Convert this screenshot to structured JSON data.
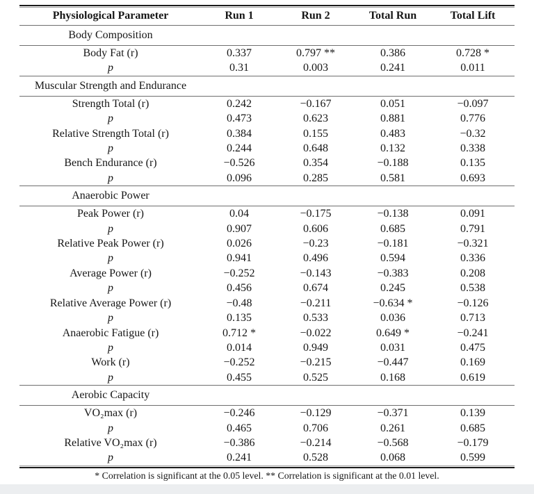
{
  "page": {
    "background": "#ffffff",
    "bottom_strip_color": "#eceef0",
    "rule_dark_color": "#1a1a1a",
    "rule_light_color": "#9a9a9a",
    "thin_rule_color": "#6e6e6e",
    "text_color": "#161616"
  },
  "table": {
    "columns": [
      "Physiological Parameter",
      "Run 1",
      "Run 2",
      "Total Run",
      "Total Lift"
    ],
    "sections": [
      {
        "title": "Body Composition",
        "rows": [
          {
            "label": "Body Fat (r)",
            "italic": false,
            "values": [
              "0.337",
              "0.797 **",
              "0.386",
              "0.728 *"
            ]
          },
          {
            "label": "p",
            "italic": true,
            "values": [
              "0.31",
              "0.003",
              "0.241",
              "0.011"
            ]
          }
        ]
      },
      {
        "title": "Muscular Strength and Endurance",
        "rows": [
          {
            "label": "Strength Total (r)",
            "italic": false,
            "values": [
              "0.242",
              "−0.167",
              "0.051",
              "−0.097"
            ]
          },
          {
            "label": "p",
            "italic": true,
            "values": [
              "0.473",
              "0.623",
              "0.881",
              "0.776"
            ]
          },
          {
            "label": "Relative Strength Total (r)",
            "italic": false,
            "values": [
              "0.384",
              "0.155",
              "0.483",
              "−0.32"
            ]
          },
          {
            "label": "p",
            "italic": true,
            "values": [
              "0.244",
              "0.648",
              "0.132",
              "0.338"
            ]
          },
          {
            "label": "Bench Endurance (r)",
            "italic": false,
            "values": [
              "−0.526",
              "0.354",
              "−0.188",
              "0.135"
            ]
          },
          {
            "label": "p",
            "italic": true,
            "values": [
              "0.096",
              "0.285",
              "0.581",
              "0.693"
            ]
          }
        ]
      },
      {
        "title": "Anaerobic Power",
        "rows": [
          {
            "label": "Peak Power (r)",
            "italic": false,
            "values": [
              "0.04",
              "−0.175",
              "−0.138",
              "0.091"
            ]
          },
          {
            "label": "p",
            "italic": true,
            "values": [
              "0.907",
              "0.606",
              "0.685",
              "0.791"
            ]
          },
          {
            "label": "Relative Peak Power (r)",
            "italic": false,
            "values": [
              "0.026",
              "−0.23",
              "−0.181",
              "−0.321"
            ]
          },
          {
            "label": "p",
            "italic": true,
            "values": [
              "0.941",
              "0.496",
              "0.594",
              "0.336"
            ]
          },
          {
            "label": "Average Power (r)",
            "italic": false,
            "values": [
              "−0.252",
              "−0.143",
              "−0.383",
              "0.208"
            ]
          },
          {
            "label": "p",
            "italic": true,
            "values": [
              "0.456",
              "0.674",
              "0.245",
              "0.538"
            ]
          },
          {
            "label": "Relative Average Power (r)",
            "italic": false,
            "values": [
              "−0.48",
              "−0.211",
              "−0.634 *",
              "−0.126"
            ]
          },
          {
            "label": "p",
            "italic": true,
            "values": [
              "0.135",
              "0.533",
              "0.036",
              "0.713"
            ]
          },
          {
            "label": "Anaerobic Fatigue (r)",
            "italic": false,
            "values": [
              "0.712 *",
              "−0.022",
              "0.649 *",
              "−0.241"
            ]
          },
          {
            "label": "p",
            "italic": true,
            "values": [
              "0.014",
              "0.949",
              "0.031",
              "0.475"
            ]
          },
          {
            "label": "Work (r)",
            "italic": false,
            "values": [
              "−0.252",
              "−0.215",
              "−0.447",
              "0.169"
            ]
          },
          {
            "label": "p",
            "italic": true,
            "values": [
              "0.455",
              "0.525",
              "0.168",
              "0.619"
            ]
          }
        ]
      },
      {
        "title": "Aerobic Capacity",
        "rows": [
          {
            "label": "VO₂max (r)",
            "italic": false,
            "values": [
              "−0.246",
              "−0.129",
              "−0.371",
              "0.139"
            ]
          },
          {
            "label": "p",
            "italic": true,
            "values": [
              "0.465",
              "0.706",
              "0.261",
              "0.685"
            ]
          },
          {
            "label": "Relative VO₂max (r)",
            "italic": false,
            "values": [
              "−0.386",
              "−0.214",
              "−0.568",
              "−0.179"
            ]
          },
          {
            "label": "p",
            "italic": true,
            "values": [
              "0.241",
              "0.528",
              "0.068",
              "0.599"
            ]
          }
        ]
      }
    ],
    "footnote": "* Correlation is significant at the 0.05 level. ** Correlation is significant at the 0.01 level."
  }
}
